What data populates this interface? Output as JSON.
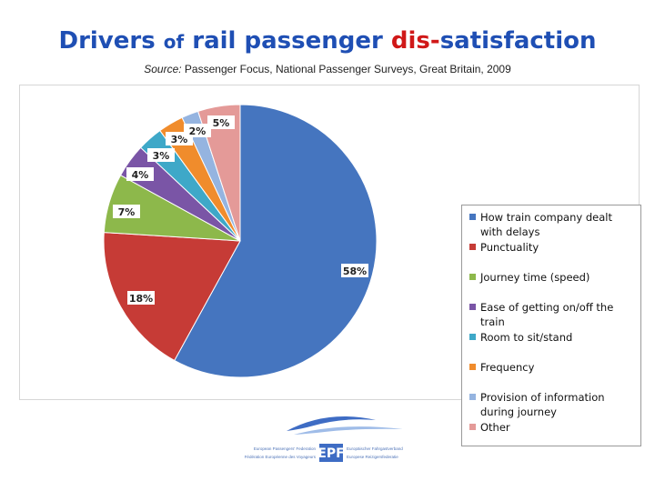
{
  "title": {
    "part1": "Drivers",
    "part2": "of",
    "part3": "rail passenger",
    "part4": "dis-",
    "part5": "satisfaction"
  },
  "source": {
    "label": "Source:",
    "text": "Passenger Focus, National Passenger Surveys, Great Britain, 2009"
  },
  "chart_data": {
    "type": "pie",
    "title": "Drivers of rail passenger dis-satisfaction",
    "slices": [
      {
        "name": "How train company dealt with delays",
        "value": 58,
        "label": "58%",
        "color": "#4575bf"
      },
      {
        "name": "Punctuality",
        "value": 18,
        "label": "18%",
        "color": "#c63b36"
      },
      {
        "name": "Journey time (speed)",
        "value": 7,
        "label": "7%",
        "color": "#8db84b"
      },
      {
        "name": "Ease of getting on/off the train",
        "value": 4,
        "label": "4%",
        "color": "#7a55a6"
      },
      {
        "name": "Room to sit/stand",
        "value": 3,
        "label": "3%",
        "color": "#3ea8c8"
      },
      {
        "name": "Frequency",
        "value": 3,
        "label": "3%",
        "color": "#f08c2c"
      },
      {
        "name": "Provision of information during journey",
        "value": 2,
        "label": "2%",
        "color": "#95b4e0"
      },
      {
        "name": "Other",
        "value": 5,
        "label": "5%",
        "color": "#e49a98"
      }
    ],
    "legend_position": "right"
  },
  "logo": {
    "abbr": "EPF",
    "left_line1": "European Passengers' Federation",
    "left_line2": "Fédération Européenne des Voyageurs",
    "right_line1": "Europäischer Fahrgastverband",
    "right_line2": "Europese Reizigersfederatie",
    "colors": {
      "blue": "#3e6cc4",
      "light": "#9fbce8"
    }
  }
}
